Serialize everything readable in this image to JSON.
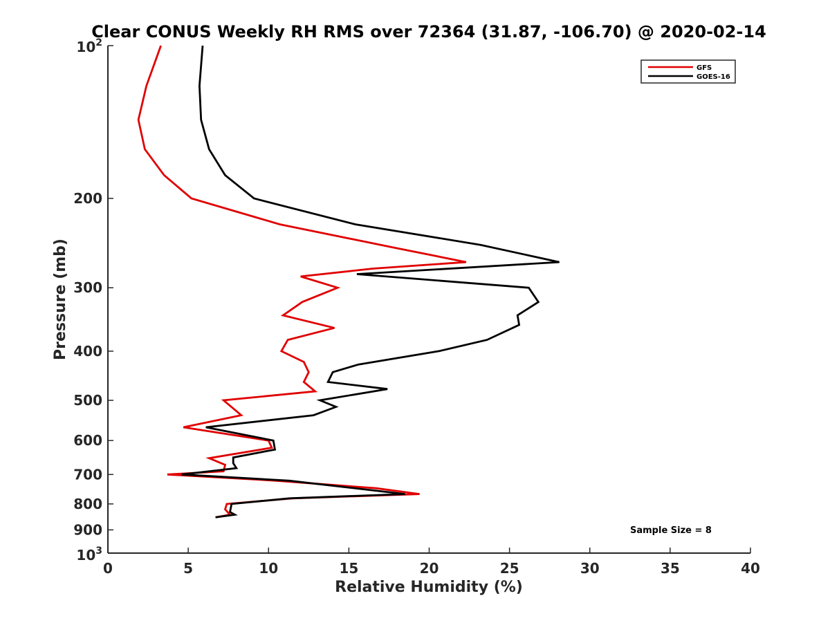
{
  "chart_data": {
    "type": "line",
    "title": "Clear CONUS Weekly RH RMS over 72364 (31.87, -106.70) @ 2020-02-14",
    "xlabel": "Relative Humidity (%)",
    "ylabel": "Pressure (mb)",
    "xlim": [
      0,
      40
    ],
    "ylim": [
      100,
      1000
    ],
    "y_scale": "log",
    "y_reversed": true,
    "x_ticks": [
      0,
      5,
      10,
      15,
      20,
      25,
      30,
      35,
      40
    ],
    "x_tick_labels": [
      "0",
      "5",
      "10",
      "15",
      "20",
      "25",
      "30",
      "35",
      "40"
    ],
    "y_ticks": [
      200,
      300,
      400,
      500,
      600,
      700,
      800,
      900
    ],
    "y_tick_labels": [
      "200",
      "300",
      "400",
      "500",
      "600",
      "700",
      "800",
      "900"
    ],
    "y_end_labels": {
      "top": {
        "base": "10",
        "exp": "2"
      },
      "bottom": {
        "base": "10",
        "exp": "3"
      }
    },
    "grid": false,
    "legend": {
      "position": "top-right",
      "entries": [
        "GFS",
        "GOES-16"
      ]
    },
    "annotation": "Sample Size = 8",
    "series": [
      {
        "name": "GFS",
        "color": "#e00000",
        "points": [
          {
            "x": 3.3,
            "p": 100
          },
          {
            "x": 2.4,
            "p": 120
          },
          {
            "x": 1.9,
            "p": 140
          },
          {
            "x": 2.3,
            "p": 160
          },
          {
            "x": 3.5,
            "p": 180
          },
          {
            "x": 5.2,
            "p": 200
          },
          {
            "x": 10.7,
            "p": 225
          },
          {
            "x": 17.8,
            "p": 250
          },
          {
            "x": 22.3,
            "p": 267
          },
          {
            "x": 16.5,
            "p": 275
          },
          {
            "x": 12.0,
            "p": 285
          },
          {
            "x": 14.3,
            "p": 300
          },
          {
            "x": 12.1,
            "p": 320
          },
          {
            "x": 10.9,
            "p": 340
          },
          {
            "x": 14.1,
            "p": 360
          },
          {
            "x": 11.2,
            "p": 380
          },
          {
            "x": 10.8,
            "p": 400
          },
          {
            "x": 12.2,
            "p": 420
          },
          {
            "x": 12.5,
            "p": 440
          },
          {
            "x": 12.2,
            "p": 460
          },
          {
            "x": 12.9,
            "p": 480
          },
          {
            "x": 7.2,
            "p": 500
          },
          {
            "x": 8.3,
            "p": 535
          },
          {
            "x": 4.7,
            "p": 565
          },
          {
            "x": 10.0,
            "p": 600
          },
          {
            "x": 10.2,
            "p": 620
          },
          {
            "x": 6.3,
            "p": 650
          },
          {
            "x": 7.3,
            "p": 670
          },
          {
            "x": 7.2,
            "p": 690
          },
          {
            "x": 3.7,
            "p": 700
          },
          {
            "x": 10.5,
            "p": 720
          },
          {
            "x": 16.7,
            "p": 745
          },
          {
            "x": 19.4,
            "p": 765
          },
          {
            "x": 11.5,
            "p": 780
          },
          {
            "x": 7.4,
            "p": 800
          },
          {
            "x": 7.3,
            "p": 820
          },
          {
            "x": 7.6,
            "p": 840
          },
          {
            "x": 6.7,
            "p": 850
          }
        ]
      },
      {
        "name": "GOES-16",
        "color": "#000000",
        "points": [
          {
            "x": 5.9,
            "p": 100
          },
          {
            "x": 5.7,
            "p": 120
          },
          {
            "x": 5.8,
            "p": 140
          },
          {
            "x": 6.3,
            "p": 160
          },
          {
            "x": 7.3,
            "p": 180
          },
          {
            "x": 9.1,
            "p": 200
          },
          {
            "x": 15.4,
            "p": 225
          },
          {
            "x": 23.2,
            "p": 247
          },
          {
            "x": 28.1,
            "p": 267
          },
          {
            "x": 15.5,
            "p": 282
          },
          {
            "x": 26.2,
            "p": 300
          },
          {
            "x": 26.8,
            "p": 320
          },
          {
            "x": 25.5,
            "p": 340
          },
          {
            "x": 25.6,
            "p": 355
          },
          {
            "x": 23.6,
            "p": 380
          },
          {
            "x": 20.6,
            "p": 400
          },
          {
            "x": 15.6,
            "p": 425
          },
          {
            "x": 14.0,
            "p": 440
          },
          {
            "x": 13.7,
            "p": 460
          },
          {
            "x": 17.4,
            "p": 475
          },
          {
            "x": 13.2,
            "p": 500
          },
          {
            "x": 14.2,
            "p": 515
          },
          {
            "x": 12.8,
            "p": 535
          },
          {
            "x": 6.1,
            "p": 565
          },
          {
            "x": 10.3,
            "p": 600
          },
          {
            "x": 10.4,
            "p": 625
          },
          {
            "x": 7.8,
            "p": 648
          },
          {
            "x": 7.8,
            "p": 665
          },
          {
            "x": 8.0,
            "p": 680
          },
          {
            "x": 4.6,
            "p": 700
          },
          {
            "x": 11.3,
            "p": 720
          },
          {
            "x": 18.5,
            "p": 765
          },
          {
            "x": 11.3,
            "p": 780
          },
          {
            "x": 7.7,
            "p": 800
          },
          {
            "x": 7.6,
            "p": 830
          },
          {
            "x": 7.9,
            "p": 840
          },
          {
            "x": 6.7,
            "p": 850
          }
        ]
      }
    ]
  }
}
